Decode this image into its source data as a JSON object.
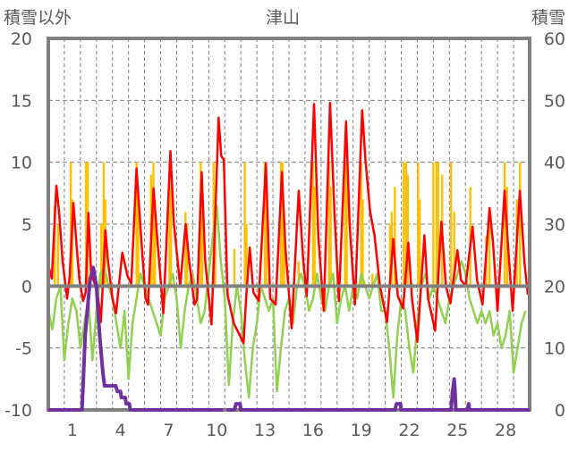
{
  "chart_data": {
    "type": "line",
    "title": "津山",
    "ylabel_left": "積雪以外",
    "ylabel_right": "積雪",
    "ylim_left": [
      -10,
      20
    ],
    "yticks_left": [
      "20",
      "15",
      "10",
      "5",
      "0",
      "-5",
      "-10"
    ],
    "ylim_right": [
      0,
      60
    ],
    "yticks_right": [
      "60",
      "50",
      "40",
      "30",
      "20",
      "10",
      "0"
    ],
    "xlim": [
      0,
      30
    ],
    "xtick_labels": [
      "1",
      "4",
      "7",
      "10",
      "13",
      "16",
      "19",
      "22",
      "25",
      "28"
    ],
    "grid": true,
    "colors": {
      "red": "#ff0000",
      "yellow": "#ffc000",
      "green": "#92d050",
      "purple": "#7030a0",
      "axis": "#808080"
    },
    "series": [
      {
        "name": "red-line",
        "axis": "left",
        "points": [
          [
            0,
            1.7
          ],
          [
            0.22,
            0.6
          ],
          [
            0.5,
            8.1
          ],
          [
            0.67,
            6
          ],
          [
            0.89,
            2
          ],
          [
            1.17,
            -1
          ],
          [
            1.33,
            0.8
          ],
          [
            1.56,
            6.7
          ],
          [
            1.78,
            3
          ],
          [
            1.94,
            0.5
          ],
          [
            2.17,
            -1.2
          ],
          [
            2.33,
            -0.5
          ],
          [
            2.5,
            5.9
          ],
          [
            2.67,
            1
          ],
          [
            2.94,
            0
          ],
          [
            3.11,
            -1
          ],
          [
            3.28,
            -2.9
          ],
          [
            3.56,
            4.5
          ],
          [
            3.72,
            2
          ],
          [
            4.0,
            -1
          ],
          [
            4.22,
            -2.2
          ],
          [
            4.61,
            2.7
          ],
          [
            4.94,
            0.8
          ],
          [
            5.17,
            0.2
          ],
          [
            5.5,
            9.5
          ],
          [
            5.78,
            4
          ],
          [
            6.06,
            -1
          ],
          [
            6.22,
            -1.5
          ],
          [
            6.56,
            7.9
          ],
          [
            6.78,
            4
          ],
          [
            7.17,
            -2.2
          ],
          [
            7.61,
            10.9
          ],
          [
            7.83,
            5
          ],
          [
            8.22,
            0
          ],
          [
            8.56,
            5
          ],
          [
            8.78,
            2
          ],
          [
            9.11,
            -1.5
          ],
          [
            9.28,
            -1
          ],
          [
            9.56,
            9.2
          ],
          [
            9.78,
            2
          ],
          [
            10.17,
            -3.1
          ],
          [
            10.39,
            5
          ],
          [
            10.61,
            13.6
          ],
          [
            10.78,
            10.5
          ],
          [
            10.94,
            10.2
          ],
          [
            11.17,
            -0.7
          ],
          [
            11.56,
            -3
          ],
          [
            12.17,
            -4.6
          ],
          [
            12.33,
            -1
          ],
          [
            12.56,
            3.1
          ],
          [
            12.78,
            -0.5
          ],
          [
            13.11,
            -1.2
          ],
          [
            13.56,
            9.9
          ],
          [
            13.83,
            -1
          ],
          [
            14.17,
            -1.5
          ],
          [
            14.56,
            9.2
          ],
          [
            14.78,
            3
          ],
          [
            15.17,
            -3.4
          ],
          [
            15.61,
            7.7
          ],
          [
            15.89,
            2
          ],
          [
            16.11,
            -0.8
          ],
          [
            16.56,
            14.7
          ],
          [
            16.83,
            4
          ],
          [
            17.17,
            -2
          ],
          [
            17.56,
            14.8
          ],
          [
            17.83,
            6
          ],
          [
            18.11,
            -1.2
          ],
          [
            18.56,
            13.3
          ],
          [
            18.78,
            5
          ],
          [
            19.11,
            -1.5
          ],
          [
            19.56,
            14.2
          ],
          [
            19.78,
            10
          ],
          [
            20.06,
            6
          ],
          [
            20.33,
            4.1
          ],
          [
            20.67,
            0
          ],
          [
            21.11,
            -2.9
          ],
          [
            21.5,
            3.8
          ],
          [
            21.78,
            -0.8
          ],
          [
            22.11,
            -1.8
          ],
          [
            22.44,
            3.5
          ],
          [
            22.67,
            -1
          ],
          [
            23.0,
            -4.5
          ],
          [
            23.44,
            4.1
          ],
          [
            23.67,
            -1
          ],
          [
            24.11,
            -3.6
          ],
          [
            24.5,
            5.2
          ],
          [
            24.78,
            0
          ],
          [
            25.06,
            -1.4
          ],
          [
            25.5,
            2.9
          ],
          [
            25.72,
            0.5
          ],
          [
            26.0,
            0
          ],
          [
            26.44,
            4.8
          ],
          [
            26.72,
            0.5
          ],
          [
            27.06,
            -1.5
          ],
          [
            27.5,
            6.3
          ],
          [
            27.72,
            3.5
          ],
          [
            28.0,
            -2
          ],
          [
            28.44,
            7.7
          ],
          [
            28.67,
            3
          ],
          [
            28.94,
            -2
          ],
          [
            29.39,
            7.7
          ],
          [
            29.67,
            2
          ],
          [
            29.89,
            -0.7
          ]
        ]
      },
      {
        "name": "green-line",
        "axis": "left",
        "x_start": 0,
        "x_step": 0.25,
        "values": [
          -2,
          -3.5,
          -1,
          0,
          -6,
          -3,
          -1,
          -2,
          -5,
          -3,
          -1,
          -6,
          -2,
          1,
          1.5,
          0,
          -1,
          -3,
          -5,
          -2,
          -7.5,
          -3,
          -1,
          1,
          0,
          -1,
          -2,
          -3,
          -4,
          -1,
          0,
          1,
          -1,
          -5,
          -2,
          0,
          1,
          -1,
          -3,
          -2,
          1,
          4,
          6.5,
          2,
          -1,
          -8,
          -3,
          0,
          -2,
          -6,
          -9,
          -5,
          -3,
          0,
          -1,
          -2,
          -1,
          -8.5,
          -5,
          -2,
          -1,
          -3,
          0,
          1,
          0,
          -2,
          -1,
          1,
          -1,
          -2,
          0,
          1,
          -3,
          -1,
          0,
          -2,
          0,
          -1,
          1,
          0,
          -1,
          0,
          1,
          -2,
          -2,
          -5,
          -9,
          -4,
          -1,
          -2,
          -5,
          -7,
          -3,
          0,
          1,
          -1,
          0,
          -1,
          -2,
          -3,
          -1,
          0,
          1,
          2,
          1,
          -1,
          -2,
          -3,
          -2,
          -3,
          -2,
          -4,
          -3,
          -5,
          -4,
          -2,
          -7,
          -5,
          -3,
          -2
        ]
      },
      {
        "name": "yellow-bars",
        "axis": "left",
        "type": "bar",
        "points": [
          [
            0.4,
            6.5
          ],
          [
            0.6,
            5
          ],
          [
            1.4,
            10
          ],
          [
            1.5,
            7
          ],
          [
            2.35,
            10
          ],
          [
            2.45,
            10
          ],
          [
            3.3,
            5
          ],
          [
            3.45,
            10
          ],
          [
            3.55,
            7
          ],
          [
            5.5,
            10
          ],
          [
            5.6,
            7
          ],
          [
            6.4,
            9
          ],
          [
            6.55,
            10
          ],
          [
            6.65,
            7
          ],
          [
            7.55,
            10
          ],
          [
            7.65,
            8
          ],
          [
            8.55,
            6
          ],
          [
            8.65,
            5
          ],
          [
            9.5,
            10
          ],
          [
            9.6,
            7
          ],
          [
            10.3,
            10
          ],
          [
            10.4,
            6
          ],
          [
            11.6,
            3
          ],
          [
            12.25,
            10
          ],
          [
            12.35,
            5
          ],
          [
            13.5,
            10
          ],
          [
            13.6,
            7
          ],
          [
            14.5,
            10
          ],
          [
            14.6,
            10
          ],
          [
            14.7,
            6
          ],
          [
            15.6,
            2
          ],
          [
            16.5,
            10
          ],
          [
            16.6,
            8
          ],
          [
            17.5,
            10
          ],
          [
            17.6,
            8
          ],
          [
            18.5,
            10
          ],
          [
            18.6,
            10
          ],
          [
            19.5,
            10
          ],
          [
            19.6,
            7
          ],
          [
            20.2,
            1
          ],
          [
            21.3,
            5
          ],
          [
            21.4,
            6
          ],
          [
            21.6,
            8
          ],
          [
            22.15,
            10
          ],
          [
            22.3,
            10
          ],
          [
            22.4,
            9
          ],
          [
            23.05,
            10
          ],
          [
            23.15,
            7
          ],
          [
            24.0,
            10
          ],
          [
            24.2,
            10
          ],
          [
            24.3,
            10
          ],
          [
            24.55,
            9
          ],
          [
            25.1,
            10
          ],
          [
            25.3,
            6
          ],
          [
            26.3,
            8
          ],
          [
            27.3,
            4
          ],
          [
            27.5,
            6
          ],
          [
            28.45,
            10
          ],
          [
            28.6,
            8
          ],
          [
            29.2,
            7
          ],
          [
            29.4,
            10
          ]
        ]
      },
      {
        "name": "purple-snow-depth",
        "axis": "right",
        "points": [
          [
            0,
            0
          ],
          [
            2.1,
            0
          ],
          [
            2.3,
            12
          ],
          [
            2.6,
            21
          ],
          [
            2.8,
            23
          ],
          [
            3.0,
            20
          ],
          [
            3.2,
            12
          ],
          [
            3.4,
            6
          ],
          [
            3.5,
            3.9
          ],
          [
            4.2,
            3.9
          ],
          [
            4.3,
            3
          ],
          [
            4.5,
            3
          ],
          [
            4.55,
            2
          ],
          [
            4.8,
            2
          ],
          [
            4.85,
            1
          ],
          [
            5.05,
            1
          ],
          [
            5.1,
            0
          ],
          [
            10.9,
            0
          ]
        ]
      },
      {
        "name": "purple-snow-depth-2",
        "axis": "right",
        "points": [
          [
            11.1,
            0
          ],
          [
            11.6,
            0
          ],
          [
            11.7,
            1
          ],
          [
            11.95,
            1
          ],
          [
            12.0,
            0
          ],
          [
            21.6,
            0
          ],
          [
            21.7,
            1
          ],
          [
            21.95,
            1
          ],
          [
            22.0,
            0
          ],
          [
            25.1,
            0
          ],
          [
            25.2,
            3
          ],
          [
            25.3,
            5
          ],
          [
            25.35,
            3
          ],
          [
            25.4,
            0
          ],
          [
            26.1,
            0
          ],
          [
            26.2,
            1
          ],
          [
            26.25,
            0
          ],
          [
            30,
            0
          ]
        ]
      }
    ]
  }
}
